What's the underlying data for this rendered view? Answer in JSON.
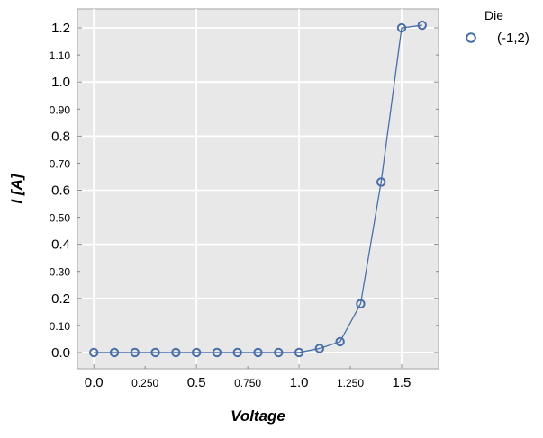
{
  "chart_data": {
    "type": "line",
    "xlabel": "Voltage",
    "ylabel": "I [A]",
    "xlim": [
      -0.08,
      1.68
    ],
    "ylim": [
      -0.06,
      1.27
    ],
    "x_ticks": [
      {
        "value": 0.0,
        "label": "0.0",
        "major": true
      },
      {
        "value": 0.25,
        "label": "0.250",
        "major": false
      },
      {
        "value": 0.5,
        "label": "0.5",
        "major": true
      },
      {
        "value": 0.75,
        "label": "0.750",
        "major": false
      },
      {
        "value": 1.0,
        "label": "1.0",
        "major": true
      },
      {
        "value": 1.25,
        "label": "1.250",
        "major": false
      },
      {
        "value": 1.5,
        "label": "1.5",
        "major": true
      }
    ],
    "y_ticks": [
      {
        "value": 0.0,
        "label": "0.0",
        "major": true
      },
      {
        "value": 0.1,
        "label": "0.10",
        "major": false
      },
      {
        "value": 0.2,
        "label": "0.2",
        "major": true
      },
      {
        "value": 0.3,
        "label": "0.30",
        "major": false
      },
      {
        "value": 0.4,
        "label": "0.4",
        "major": true
      },
      {
        "value": 0.5,
        "label": "0.50",
        "major": false
      },
      {
        "value": 0.6,
        "label": "0.6",
        "major": true
      },
      {
        "value": 0.7,
        "label": "0.70",
        "major": false
      },
      {
        "value": 0.8,
        "label": "0.8",
        "major": true
      },
      {
        "value": 0.9,
        "label": "0.90",
        "major": false
      },
      {
        "value": 1.0,
        "label": "1.0",
        "major": true
      },
      {
        "value": 1.1,
        "label": "1.10",
        "major": false
      },
      {
        "value": 1.2,
        "label": "1.2",
        "major": true
      }
    ],
    "grid": true,
    "legend": {
      "title": "Die",
      "placement": "right-outside-top"
    },
    "series": [
      {
        "name": "(-1,2)",
        "color": "#4a6fa8",
        "marker": "open-circle",
        "x": [
          0.0,
          0.1,
          0.2,
          0.3,
          0.4,
          0.5,
          0.6,
          0.7,
          0.8,
          0.9,
          1.0,
          1.1,
          1.2,
          1.3,
          1.4,
          1.5,
          1.6
        ],
        "y": [
          0.0,
          0.0,
          0.0,
          0.0,
          0.0,
          0.0,
          0.0,
          0.0,
          0.0,
          0.0,
          0.0,
          0.015,
          0.04,
          0.18,
          0.63,
          1.2,
          1.21
        ]
      }
    ],
    "colors": {
      "panel_background": "#e8e8e8",
      "grid": "#ffffff",
      "frame": "#b0b0b0"
    }
  }
}
